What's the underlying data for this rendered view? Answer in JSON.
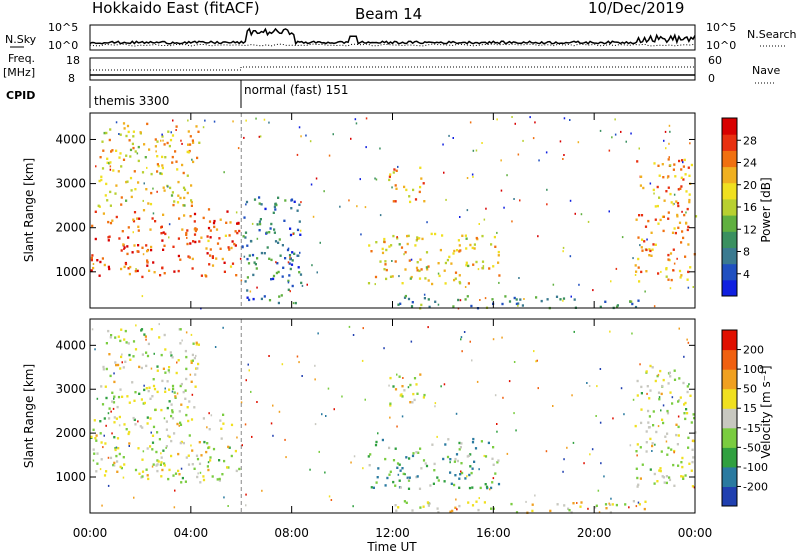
{
  "header": {
    "site": "Hokkaido East (fitACF)",
    "beam": "Beam 14",
    "date": "10/Dec/2019"
  },
  "status_rows": {
    "nsky_label": "N.Sky",
    "nsky_ticks": [
      "10^5",
      "10^0"
    ],
    "nsearch_label": "N.Search",
    "nsearch_ticks": [
      "10^5",
      "10^0"
    ],
    "freq_label": "Freq.",
    "freq_unit": "[MHz]",
    "freq_ticks": [
      "18",
      "8"
    ],
    "nave_label": "Nave",
    "nave_ticks": [
      "60",
      "0"
    ],
    "cpid_label": "CPID",
    "cpid_modes": [
      {
        "name": "themis 3300",
        "start_hour": 0
      },
      {
        "name": "normal (fast) 151",
        "start_hour": 6
      }
    ]
  },
  "chart_data": [
    {
      "type": "heatmap",
      "panel": "power",
      "xlabel": "Time UT",
      "ylabel": "Slant Range [km]",
      "x_ticks": [
        "00:00",
        "04:00",
        "08:00",
        "12:00",
        "16:00",
        "20:00",
        "00:00"
      ],
      "xlim_hours": [
        0,
        24
      ],
      "y_ticks": [
        1000,
        2000,
        3000,
        4000
      ],
      "ylim_km": [
        180,
        4600
      ],
      "colorbar": {
        "label": "Power [dB]",
        "ticks": [
          "4",
          "8",
          "12",
          "16",
          "20",
          "24",
          "28"
        ],
        "range": [
          0,
          30
        ],
        "colors": [
          "#1020e0",
          "#2050c0",
          "#3a7a90",
          "#3a9060",
          "#60b040",
          "#b8d030",
          "#f0e020",
          "#f0b020",
          "#f07010",
          "#e83010",
          "#d80000"
        ]
      },
      "echo_regions": [
        {
          "t0": 0.0,
          "t1": 5.9,
          "r0": 900,
          "r1": 2450,
          "level": 0.82
        },
        {
          "t0": 0.3,
          "t1": 4.3,
          "r0": 2500,
          "r1": 4400,
          "level": 0.62
        },
        {
          "t0": 6.0,
          "t1": 8.4,
          "r0": 300,
          "r1": 2800,
          "level": 0.25
        },
        {
          "t0": 11.8,
          "t1": 13.3,
          "r0": 2600,
          "r1": 3400,
          "level": 0.7
        },
        {
          "t0": 11.0,
          "t1": 16.2,
          "r0": 750,
          "r1": 1900,
          "level": 0.62
        },
        {
          "t0": 12.0,
          "t1": 22.0,
          "r0": 200,
          "r1": 480,
          "level": 0.3
        },
        {
          "t0": 21.6,
          "t1": 24.0,
          "r0": 800,
          "r1": 3600,
          "level": 0.72
        }
      ]
    },
    {
      "type": "heatmap",
      "panel": "velocity",
      "xlabel": "Time UT",
      "ylabel": "Slant Range [km]",
      "x_ticks": [
        "00:00",
        "04:00",
        "08:00",
        "12:00",
        "16:00",
        "20:00",
        "00:00"
      ],
      "xlim_hours": [
        0,
        24
      ],
      "y_ticks": [
        1000,
        2000,
        3000,
        4000
      ],
      "ylim_km": [
        180,
        4600
      ],
      "colorbar": {
        "label": "Velocity [m s⁻¹]",
        "ticks": [
          "200",
          "100",
          "50",
          "15",
          "-15",
          "-50",
          "-100",
          "-200"
        ],
        "range": [
          -250,
          250
        ],
        "colors": [
          "#2040b0",
          "#2a7aa0",
          "#30a040",
          "#7acc40",
          "#c8c8c0",
          "#f0e020",
          "#f0a020",
          "#f06010",
          "#e01000"
        ]
      },
      "echo_regions": [
        {
          "t0": 0.0,
          "t1": 5.9,
          "r0": 900,
          "r1": 2450,
          "level": 0.5
        },
        {
          "t0": 0.3,
          "t1": 4.3,
          "r0": 2500,
          "r1": 4400,
          "level": 0.5
        },
        {
          "t0": 11.8,
          "t1": 13.3,
          "r0": 2600,
          "r1": 3400,
          "level": 0.52
        },
        {
          "t0": 11.0,
          "t1": 16.2,
          "r0": 750,
          "r1": 1900,
          "level": 0.32
        },
        {
          "t0": 12.0,
          "t1": 22.0,
          "r0": 200,
          "r1": 480,
          "level": 0.55
        },
        {
          "t0": 21.6,
          "t1": 24.0,
          "r0": 800,
          "r1": 3600,
          "level": 0.5
        }
      ]
    }
  ]
}
